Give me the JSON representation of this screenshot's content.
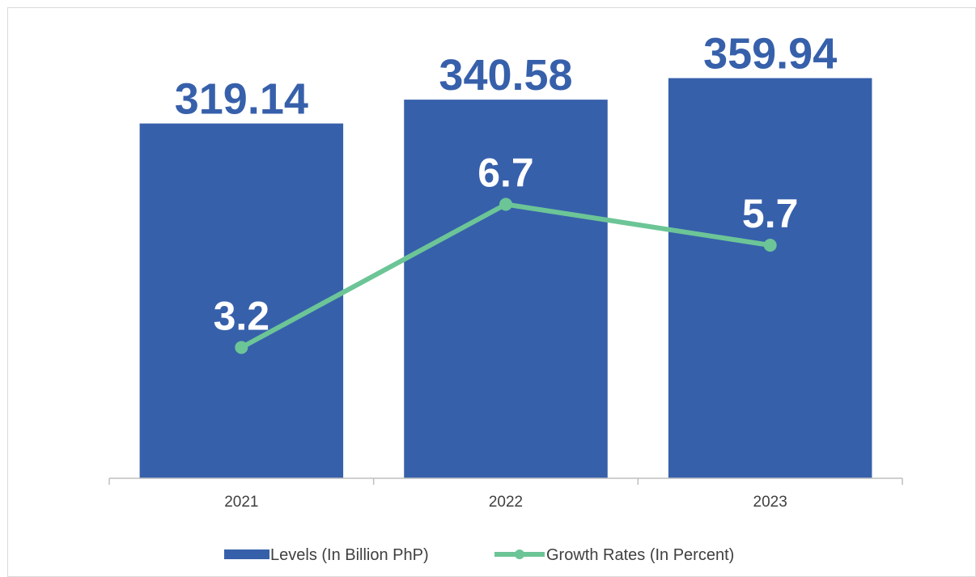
{
  "chart_data": {
    "type": "bar",
    "categories": [
      "2021",
      "2022",
      "2023"
    ],
    "series": [
      {
        "name": "Levels (In Billion PhP)",
        "kind": "bar",
        "values": [
          319.14,
          340.58,
          359.94
        ],
        "labels": [
          "319.14",
          "340.58",
          "359.94"
        ],
        "color": "#3760ab"
      },
      {
        "name": "Growth Rates (In Percent)",
        "kind": "line",
        "values": [
          3.2,
          6.7,
          5.7
        ],
        "labels": [
          "3.2",
          "6.7",
          "5.7"
        ],
        "color": "#6cc596"
      }
    ],
    "title": "",
    "xlabel": "",
    "ylabel": "",
    "ylim": [
      0,
      396
    ],
    "y2lim": [
      0,
      11.5
    ],
    "grid": false,
    "legend": "bottom-center"
  }
}
